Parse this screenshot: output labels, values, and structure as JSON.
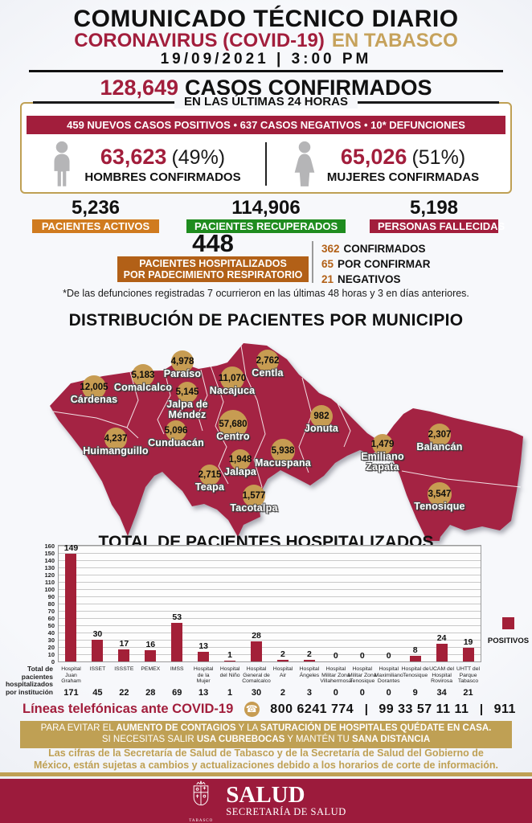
{
  "header": {
    "title": "COMUNICADO TÉCNICO DIARIO",
    "subtitle_main": "CORONAVIRUS (COVID-19)",
    "subtitle_region": "EN TABASCO",
    "datetime": "19/09/2021 | 3:00 PM"
  },
  "confirmed": {
    "value": "128,649",
    "label": "CASOS CONFIRMADOS",
    "period_chip": "EN LAS ÚLTIMAS 24 HORAS",
    "banner": "459 NUEVOS CASOS POSITIVOS  •  637 CASOS NEGATIVOS  •  10* DEFUNCIONES"
  },
  "genders": {
    "male": {
      "value": "63,623",
      "pct": "(49%)",
      "label": "HOMBRES CONFIRMADOS"
    },
    "female": {
      "value": "65,026",
      "pct": "(51%)",
      "label": "MUJERES CONFIRMADAS"
    }
  },
  "stats": [
    {
      "value": "5,236",
      "label": "PACIENTES ACTIVOS",
      "color": "#d07b1f"
    },
    {
      "value": "114,906",
      "label": "PACIENTES RECUPERADOS",
      "color": "#1f8c1f"
    },
    {
      "value": "5,198",
      "label": "PERSONAS FALLECIDAS",
      "color": "#a21e3c"
    }
  ],
  "hospitalized": {
    "value": "448",
    "box_line1": "PACIENTES HOSPITALIZADOS",
    "box_line2": "POR PADECIMIENTO RESPIRATORIO",
    "breakdown": [
      {
        "value": "362",
        "label": "CONFIRMADOS"
      },
      {
        "value": "65",
        "label": "POR CONFIRMAR"
      },
      {
        "value": "21",
        "label": "NEGATIVOS"
      }
    ]
  },
  "footnote": "*De las defunciones registradas 7 ocurrieron en las últimas 48 horas y 3 en días anteriores.",
  "map": {
    "title": "DISTRIBUCIÓN DE PACIENTES POR MUNICIPIO",
    "municipalities": [
      {
        "name": "Cárdenas",
        "value": "12,005"
      },
      {
        "name": "Comalcalco",
        "value": "5,183"
      },
      {
        "name": "Paraíso",
        "value": "4,978"
      },
      {
        "name": "Jalpa de Méndez",
        "value": "5,145"
      },
      {
        "name": "Nacajuca",
        "value": "11,070"
      },
      {
        "name": "Centla",
        "value": "2,762"
      },
      {
        "name": "Cunduacán",
        "value": "5,096"
      },
      {
        "name": "Centro",
        "value": "57,680"
      },
      {
        "name": "Huimanguillo",
        "value": "4,237"
      },
      {
        "name": "Jalapa",
        "value": "1,948"
      },
      {
        "name": "Teapa",
        "value": "2,715"
      },
      {
        "name": "Tacotalpa",
        "value": "1,577"
      },
      {
        "name": "Macuspana",
        "value": "5,938"
      },
      {
        "name": "Jonuta",
        "value": "982"
      },
      {
        "name": "Emiliano Zapata",
        "value": "1,479"
      },
      {
        "name": "Balancán",
        "value": "2,307"
      },
      {
        "name": "Tenosique",
        "value": "3,547"
      }
    ]
  },
  "chart_data": {
    "type": "bar",
    "title": "TOTAL DE PACIENTES HOSPITALIZADOS",
    "ylim": [
      0,
      160
    ],
    "ytick_step": 10,
    "grid": true,
    "legend": [
      "POSITIVOS"
    ],
    "legend_position": "right",
    "bar_color": "#a32038",
    "categories": [
      [
        "Hospital",
        "Juan Graham"
      ],
      [
        "ISSET"
      ],
      [
        "ISSSTE"
      ],
      [
        "PEMEX"
      ],
      [
        "IMSS"
      ],
      [
        "Hospital",
        "de la",
        "Mujer"
      ],
      [
        "Hospital",
        "del Niño"
      ],
      [
        "Hospital",
        "General de",
        "Comalcalco"
      ],
      [
        "Hospital",
        "Air"
      ],
      [
        "Hospital",
        "Ángeles"
      ],
      [
        "Hospital",
        "Militar Zona",
        "Villahermosa"
      ],
      [
        "Hospital",
        "Militar Zona",
        "Tenosique"
      ],
      [
        "Hospital",
        "Maximiliano",
        "Dorantes"
      ],
      [
        "Hospital de",
        "Tenosique"
      ],
      [
        "UCAM del",
        "Hospital",
        "Rovirosa"
      ],
      [
        "UHTT del",
        "Parque",
        "Tabasco"
      ]
    ],
    "series": [
      {
        "name": "POSITIVOS",
        "values": [
          149,
          30,
          17,
          16,
          53,
          13,
          1,
          28,
          2,
          2,
          0,
          0,
          0,
          8,
          24,
          19
        ]
      }
    ],
    "totals_row": {
      "caption_lines": [
        "Total de",
        "pacientes",
        "hospitalizados",
        "por institución"
      ],
      "values": [
        171,
        45,
        22,
        28,
        69,
        13,
        1,
        30,
        2,
        3,
        0,
        0,
        0,
        9,
        34,
        21
      ]
    }
  },
  "phones": {
    "label": "Líneas telefónicas ante COVID-19",
    "numbers": [
      "800 6241 774",
      "99 33 57 11 11",
      "911"
    ],
    "separator": "|"
  },
  "stay_home_banner": {
    "line1": [
      {
        "text": "PARA EVITAR EL ",
        "bold": false
      },
      {
        "text": "AUMENTO DE CONTAGIOS",
        "bold": true
      },
      {
        "text": " Y LA ",
        "bold": false
      },
      {
        "text": "SATURACIÓN DE HOSPITALES QUÉDATE EN CASA.",
        "bold": true
      }
    ],
    "line2": [
      {
        "text": "SI NECESITAS SALIR ",
        "bold": false
      },
      {
        "text": "USA CUBREBOCAS",
        "bold": true
      },
      {
        "text": " Y MANTÉN TU ",
        "bold": false
      },
      {
        "text": "SANA DISTANCIA",
        "bold": true
      }
    ]
  },
  "disclaimer": "Las cifras de la Secretaría de Salud de Tabasco y de la Secretaría de Salud del Gobierno de México, están sujetas a cambios y actualizaciones debido a los horarios de corte de información.",
  "footer": {
    "org": "SALUD",
    "sub": "SECRETARÍA DE SALUD",
    "state": "TABASCO"
  },
  "colors": {
    "crimson": "#a21e3c",
    "gold": "#bfa054",
    "orange": "#d07b1f",
    "green": "#1f8c1f",
    "burnt_orange": "#b26017",
    "map_fill": "#a42343",
    "map_circle": "#c79c52",
    "bar": "#a32038",
    "footer_band": "#9c1b3c",
    "icon_gray": "#b5b5b7"
  }
}
